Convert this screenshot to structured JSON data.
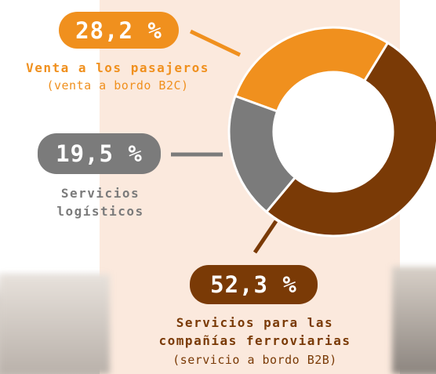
{
  "chart_data": {
    "type": "pie",
    "categories": [
      "Venta a los pasajeros",
      "Servicios para las compañías ferroviarias",
      "Servicios logísticos"
    ],
    "descriptions": [
      "(venta a bordo B2C)",
      "(servicio a bordo B2B)",
      null
    ],
    "values": [
      28.2,
      52.3,
      19.5
    ],
    "value_labels": [
      "28,2 %",
      "52,3 %",
      "19,5 %"
    ],
    "colors": [
      "#f0901e",
      "#7a3a06",
      "#7b7b7b"
    ]
  }
}
